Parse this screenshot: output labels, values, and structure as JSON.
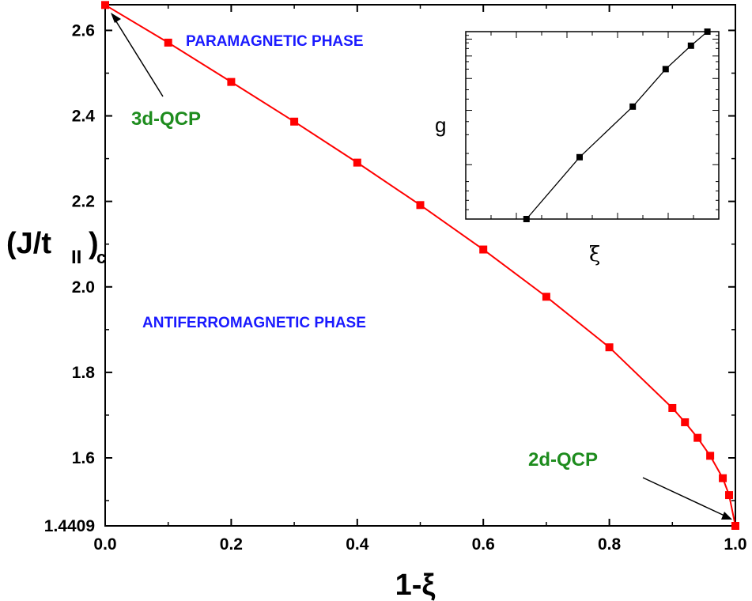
{
  "chart_data": [
    {
      "type": "line",
      "x": [
        0.0,
        0.1,
        0.2,
        0.3,
        0.4,
        0.5,
        0.6,
        0.7,
        0.8,
        0.9,
        0.92,
        0.94,
        0.96,
        0.98,
        0.99,
        1.0
      ],
      "y": [
        2.6594,
        2.5714,
        2.4794,
        2.3866,
        2.2907,
        2.1914,
        2.0874,
        1.9769,
        1.8586,
        1.7166,
        1.6833,
        1.6469,
        1.6048,
        1.5524,
        1.5129,
        1.4409
      ],
      "xlabel": "1-ξ",
      "ylabel_main": "(J/t",
      "ylabel_sub1": "II",
      "ylabel_sub2": "c",
      "xlim": [
        0.0,
        1.0
      ],
      "ylim": [
        1.4409,
        2.66
      ],
      "xticks": [
        0.0,
        0.2,
        0.4,
        0.6,
        0.8,
        1.0
      ],
      "xtick_labels": [
        "0.0",
        "0.2",
        "0.4",
        "0.6",
        "0.8",
        "1.0"
      ],
      "yticks": [
        1.4409,
        1.6,
        1.8,
        2.0,
        2.2,
        2.4,
        2.6
      ],
      "ytick_labels": [
        "1.4409",
        "1.6",
        "1.8",
        "2.0",
        "2.2",
        "2.4",
        "2.6"
      ],
      "series_color": "#ff0000",
      "marker": "square",
      "annotations": {
        "paramagnetic": "PARAMAGNETIC PHASE",
        "antiferromagnetic": "ANTIFERROMAGNETIC PHASE",
        "qcp_3d": "3d-QCP",
        "qcp_2d": "2d-QCP"
      },
      "annotation_colors": {
        "phase": "#1a1aff",
        "qcp": "#1e8c1e"
      },
      "arrows": [
        {
          "label": "3d-QCP",
          "points_to": [
            0.0,
            2.6594
          ]
        },
        {
          "label": "2d-QCP",
          "points_to": [
            1.0,
            1.4409
          ]
        }
      ],
      "grid": false
    },
    {
      "type": "line",
      "inset": true,
      "xlabel": "ξ",
      "ylabel": "g",
      "x": [
        0.1,
        0.4,
        0.6,
        0.8,
        0.9,
        0.98
      ],
      "y": [
        0.0,
        0.33,
        0.6,
        0.8,
        0.925,
        1.0
      ],
      "log_scale_y": true,
      "tick_labels_shown": false,
      "series_color": "#000000",
      "marker": "square",
      "grid": false
    }
  ]
}
